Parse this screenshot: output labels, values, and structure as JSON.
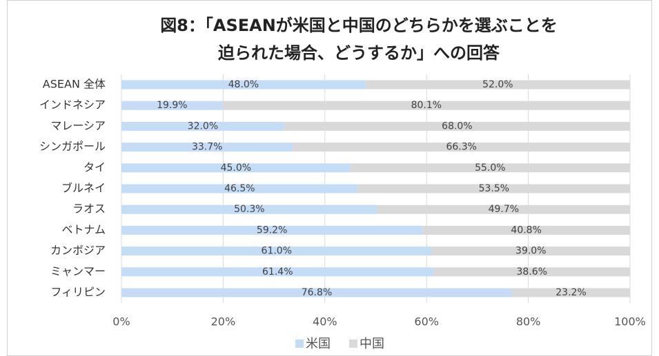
{
  "chart_data": {
    "type": "stacked_bar_horizontal",
    "title": [
      "図8：「ASEANが米国と中国のどちらかを選ぶことを",
      "迫られた場合、どうするか」への回答"
    ],
    "categories": [
      "ASEAN 全体",
      "インドネシア",
      "マレーシア",
      "シンガポール",
      "タイ",
      "ブルネイ",
      "ラオス",
      "ベトナム",
      "カンボジア",
      "ミャンマー",
      "フィリピン"
    ],
    "series": [
      {
        "name": "米国",
        "color": "#c5dcf7",
        "values": [
          48.0,
          19.9,
          32.0,
          33.7,
          45.0,
          46.5,
          50.3,
          59.2,
          61.0,
          61.4,
          76.8
        ],
        "value_labels": [
          "48.0%",
          "19.9%",
          "32.0%",
          "33.7%",
          "45.0%",
          "46.5%",
          "50.3%",
          "59.2%",
          "61.0%",
          "61.4%",
          "76.8%"
        ]
      },
      {
        "name": "中国",
        "color": "#d9d9d9",
        "values": [
          52.0,
          80.1,
          68.0,
          66.3,
          55.0,
          53.5,
          49.7,
          40.8,
          39.0,
          38.6,
          23.2
        ],
        "value_labels": [
          "52.0%",
          "80.1%",
          "68.0%",
          "66.3%",
          "55.0%",
          "53.5%",
          "49.7%",
          "40.8%",
          "39.0%",
          "38.6%",
          "23.2%"
        ]
      }
    ],
    "xlim": [
      0,
      100
    ],
    "xticks": [
      {
        "value": 0,
        "label": "0%"
      },
      {
        "value": 20,
        "label": "20%"
      },
      {
        "value": 40,
        "label": "40%"
      },
      {
        "value": 60,
        "label": "60%"
      },
      {
        "value": 80,
        "label": "80%"
      },
      {
        "value": 100,
        "label": "100%"
      }
    ],
    "grid": true,
    "legend": "bottom"
  }
}
